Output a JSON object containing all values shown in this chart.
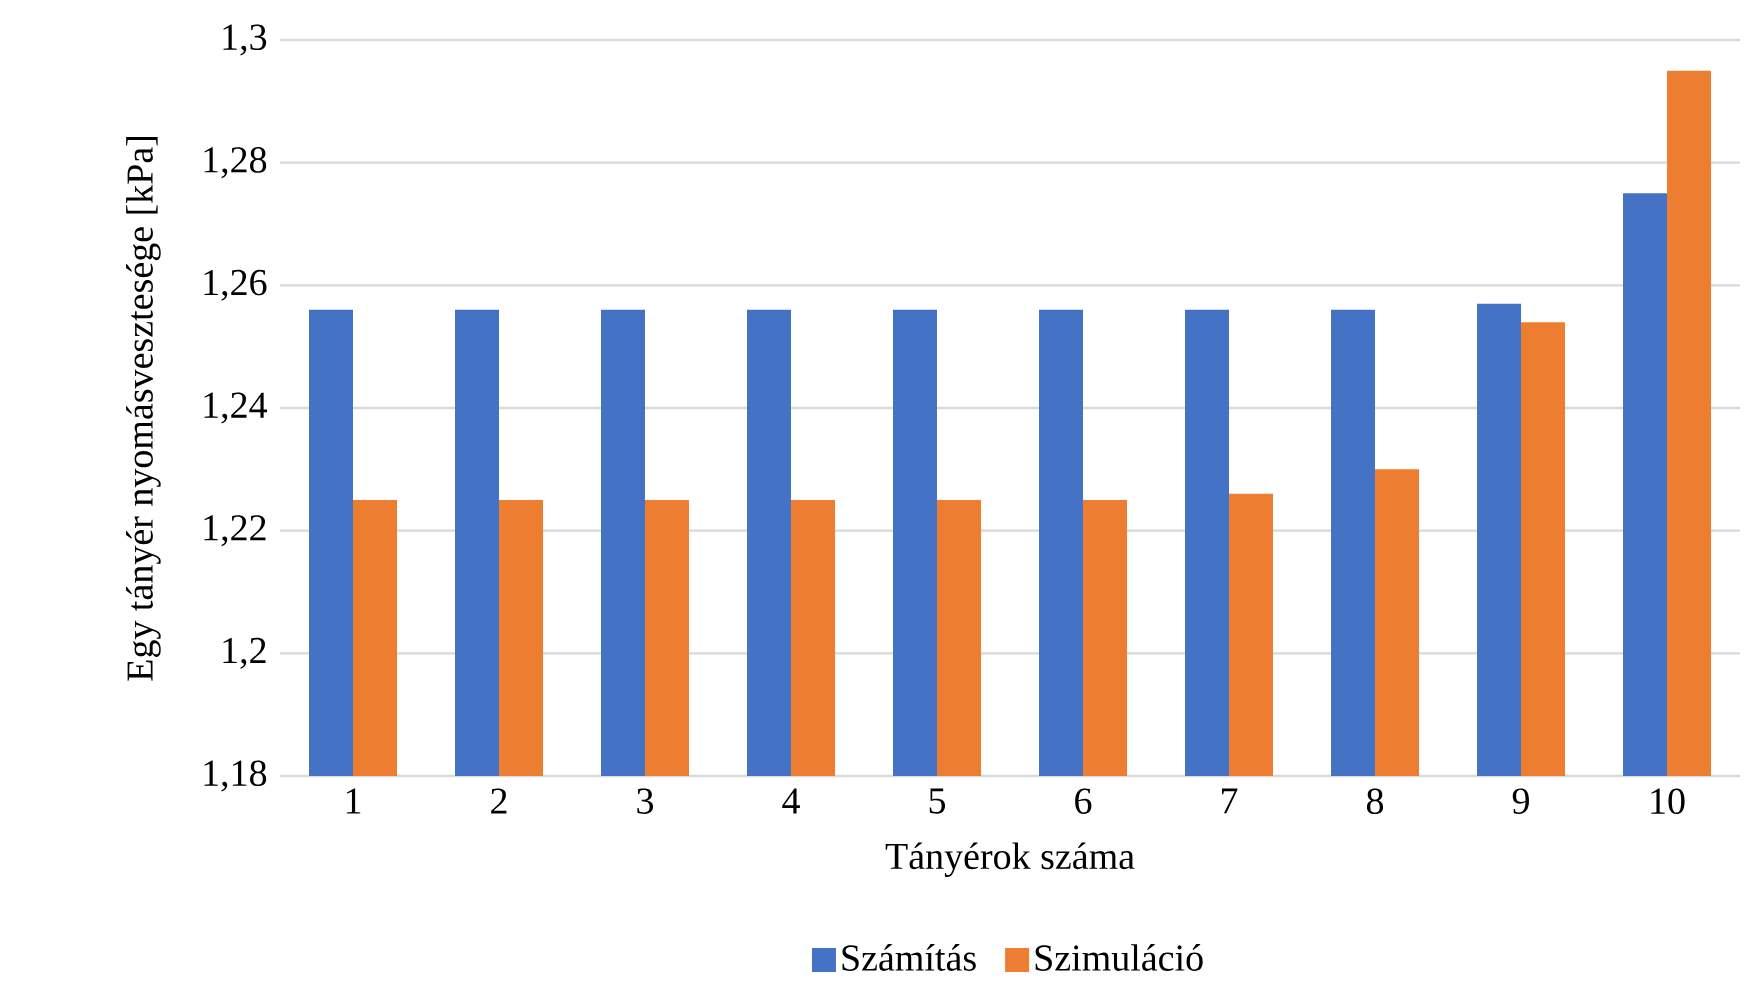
{
  "chart_data": {
    "type": "bar",
    "categories": [
      "1",
      "2",
      "3",
      "4",
      "5",
      "6",
      "7",
      "8",
      "9",
      "10"
    ],
    "series": [
      {
        "name": "Számítás",
        "color": "#4472c4",
        "values": [
          1.256,
          1.256,
          1.256,
          1.256,
          1.256,
          1.256,
          1.256,
          1.256,
          1.257,
          1.275
        ]
      },
      {
        "name": "Szimuláció",
        "color": "#ed7d31",
        "values": [
          1.225,
          1.225,
          1.225,
          1.225,
          1.225,
          1.225,
          1.226,
          1.23,
          1.254,
          1.295
        ]
      }
    ],
    "xlabel": "Tányérok száma",
    "ylabel": "Egy tányér nyomásvesztesége  [kPa]",
    "ylim": [
      1.18,
      1.3
    ],
    "yticks": [
      {
        "value": 1.18,
        "label": "1,18"
      },
      {
        "value": 1.2,
        "label": "1,2"
      },
      {
        "value": 1.22,
        "label": "1,22"
      },
      {
        "value": 1.24,
        "label": "1,24"
      },
      {
        "value": 1.26,
        "label": "1,26"
      },
      {
        "value": 1.28,
        "label": "1,28"
      },
      {
        "value": 1.3,
        "label": "1,3"
      }
    ],
    "grid": "y",
    "legend": "bottom"
  }
}
